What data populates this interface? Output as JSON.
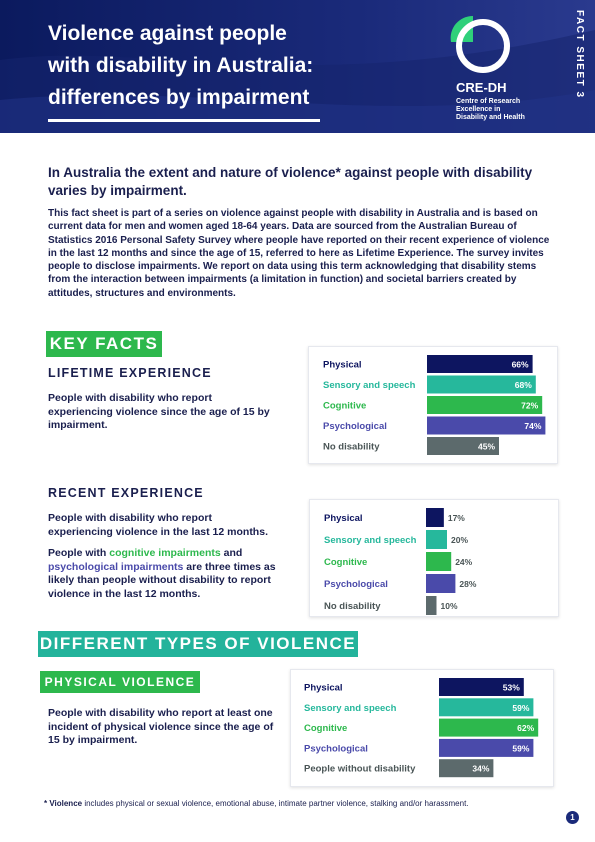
{
  "header": {
    "title_lines": [
      "Violence against people",
      "with disability in Australia:",
      "differences by impairment"
    ],
    "logo_name": "CRE-DH",
    "logo_sub": [
      "Centre of Research",
      "Excellence in",
      "Disability and Health"
    ],
    "side_label": "FACT SHEET 3"
  },
  "lead": "In Australia the extent and nature of violence* against people with disability varies by impairment.",
  "intro": "This fact sheet is part of a series on violence against people with disability in Australia and is based on current data for men and women aged 18-64 years. Data are sourced from the Australian Bureau of Statistics 2016 Personal Safety Survey where people have reported on their recent experience of violence in the last 12 months and since the age of 15, referred to here as Lifetime Experience. The survey invites people to disclose impairments. We report on data using this term acknowledging that disability stems from the interaction between impairments (a limitation in function) and societal barriers created by attitudes, structures and environments.",
  "key_facts": {
    "badge": "KEY FACTS",
    "lifetime": {
      "heading": "LIFETIME EXPERIENCE",
      "text": "People with disability who report experiencing violence since the age of 15 by impairment."
    },
    "recent": {
      "heading": "RECENT EXPERIENCE",
      "text": "People with disability who report experiencing violence in the last 12 months.",
      "text2_pre": "People with ",
      "text2_cog": "cognitive impairments",
      "text2_mid": " and ",
      "text2_psy": "psychological impairments",
      "text2_post": " are three times as likely than people without disability to report violence in the last 12 months."
    }
  },
  "types": {
    "badge": "DIFFERENT TYPES OF VIOLENCE",
    "physical": {
      "badge": "PHYSICAL VIOLENCE",
      "text": "People with disability who report at least one incident of physical violence since the age of 15 by impairment."
    }
  },
  "colors": {
    "physical": "#0d1560",
    "sensory": "#26b89c",
    "cognitive": "#2db84d",
    "psychological": "#4a4aaa",
    "none": "#5c6a6c",
    "label_none": "#4a5556"
  },
  "chart_data": [
    {
      "type": "bar",
      "categories": [
        "Physical",
        "Sensory and speech",
        "Cognitive",
        "Psychological",
        "No disability"
      ],
      "values": [
        66,
        68,
        72,
        74,
        45
      ],
      "value_labels": [
        "66%",
        "68%",
        "72%",
        "74%",
        "45%"
      ],
      "xlim": [
        0,
        100
      ]
    },
    {
      "type": "bar",
      "categories": [
        "Physical",
        "Sensory and speech",
        "Cognitive",
        "Psychological",
        "No disability"
      ],
      "values": [
        17,
        20,
        24,
        28,
        10
      ],
      "value_labels": [
        "17%",
        "20%",
        "24%",
        "28%",
        "10%"
      ],
      "xlim": [
        0,
        100
      ]
    },
    {
      "type": "bar",
      "categories": [
        "Physical",
        "Sensory and speech",
        "Cognitive",
        "Psychological",
        "People without disability"
      ],
      "values": [
        53,
        59,
        62,
        59,
        34
      ],
      "value_labels": [
        "53%",
        "59%",
        "62%",
        "59%",
        "34%"
      ],
      "xlim": [
        0,
        100
      ]
    }
  ],
  "footnote": {
    "lead": "* Violence",
    "text": " includes physical or sexual violence, emotional abuse, intimate partner violence, stalking and/or harassment."
  },
  "page_number": "1"
}
